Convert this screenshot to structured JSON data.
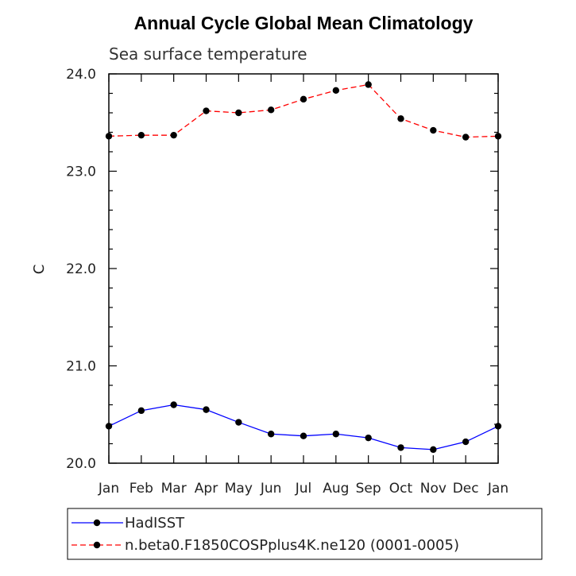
{
  "chart_data": {
    "type": "line",
    "title": "Annual Cycle Global Mean Climatology",
    "subtitle": "Sea surface temperature",
    "xlabel": "",
    "ylabel": "C",
    "categories": [
      "Jan",
      "Feb",
      "Mar",
      "Apr",
      "May",
      "Jun",
      "Jul",
      "Aug",
      "Sep",
      "Oct",
      "Nov",
      "Dec",
      "Jan"
    ],
    "ylim": [
      20.0,
      24.0
    ],
    "yticks": [
      "20.0",
      "21.0",
      "22.0",
      "23.0",
      "24.0"
    ],
    "series": [
      {
        "name": "HadISST",
        "color": "#0000ff",
        "dash": "solid",
        "values": [
          20.38,
          20.54,
          20.6,
          20.55,
          20.42,
          20.3,
          20.28,
          20.3,
          20.26,
          20.16,
          20.14,
          20.22,
          20.38
        ]
      },
      {
        "name": "n.beta0.F1850COSPplus4K.ne120 (0001-0005)",
        "color": "#ff0000",
        "dash": "dashed",
        "values": [
          23.36,
          23.37,
          23.37,
          23.62,
          23.6,
          23.63,
          23.74,
          23.83,
          23.89,
          23.54,
          23.42,
          23.35,
          23.36
        ]
      }
    ],
    "legend_position": "bottom"
  }
}
